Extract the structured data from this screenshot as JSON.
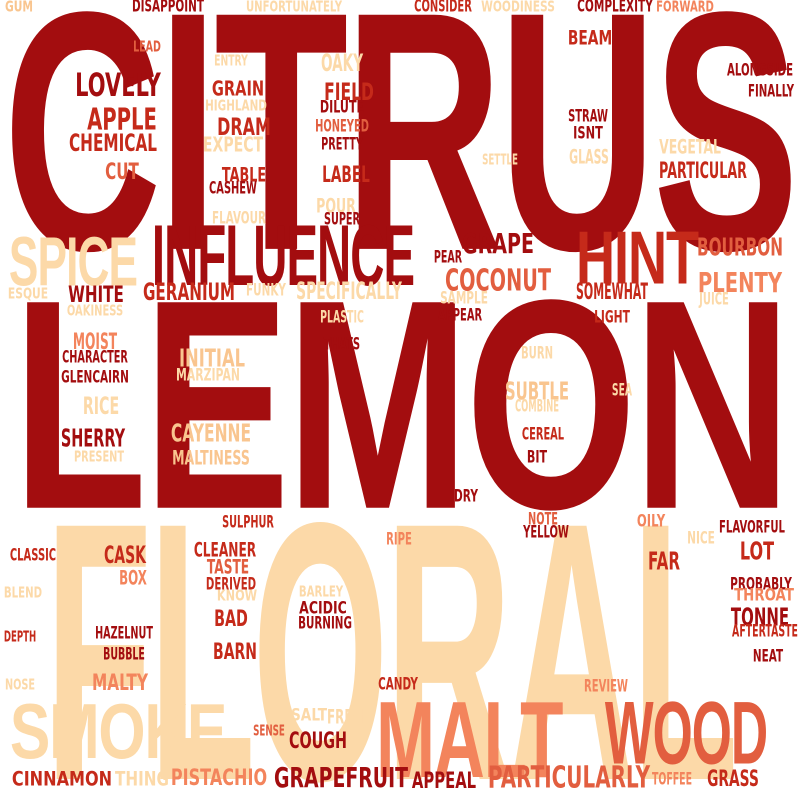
{
  "palette": {
    "dark_red": "#a30d0f",
    "red": "#c52a1a",
    "orange_red": "#e25e3f",
    "salmon": "#f3845c",
    "peach": "#f9c58f",
    "light_peach": "#fcd9a8"
  },
  "words": [
    {
      "text": "CITRUS",
      "color": "#a30d0f"
    },
    {
      "text": "LEMON",
      "color": "#a30d0f"
    },
    {
      "text": "FLORAL",
      "color": "#fcd9a8"
    },
    {
      "text": "MALT",
      "color": "#f3845c"
    },
    {
      "text": "WOOD",
      "color": "#e25e3f"
    },
    {
      "text": "SMOKE",
      "color": "#fcd9a8"
    },
    {
      "text": "INFLUENCE",
      "color": "#a30d0f"
    },
    {
      "text": "HINT",
      "color": "#c52a1a"
    },
    {
      "text": "SPICE",
      "color": "#fcd9a8"
    },
    {
      "text": "GUM",
      "color": "#f9c58f"
    },
    {
      "text": "DISAPPOINT",
      "color": "#a30d0f"
    },
    {
      "text": "UNFORTUNATELY",
      "color": "#fcd9a8"
    },
    {
      "text": "CONSIDER",
      "color": "#c52a1a"
    },
    {
      "text": "WOODINESS",
      "color": "#fcd9a8"
    },
    {
      "text": "COMPLEXITY",
      "color": "#a30d0f"
    },
    {
      "text": "FORWARD",
      "color": "#f3845c"
    },
    {
      "text": "LEAD",
      "color": "#e25e3f"
    },
    {
      "text": "ENTRY",
      "color": "#fcd9a8"
    },
    {
      "text": "OAKY",
      "color": "#fcd9a8"
    },
    {
      "text": "BEAM",
      "color": "#c52a1a"
    },
    {
      "text": "ALONGSIDE",
      "color": "#a30d0f"
    },
    {
      "text": "LOVELY",
      "color": "#a30d0f"
    },
    {
      "text": "GRAIN",
      "color": "#c52a1a"
    },
    {
      "text": "FIELD",
      "color": "#c52a1a"
    },
    {
      "text": "FINALLY",
      "color": "#a30d0f"
    },
    {
      "text": "HIGHLAND",
      "color": "#fcd9a8"
    },
    {
      "text": "DILUTE",
      "color": "#a30d0f"
    },
    {
      "text": "STRAW",
      "color": "#a30d0f"
    },
    {
      "text": "APPLE",
      "color": "#c52a1a"
    },
    {
      "text": "DRAM",
      "color": "#c52a1a"
    },
    {
      "text": "HONEYED",
      "color": "#e25e3f"
    },
    {
      "text": "ISNT",
      "color": "#a30d0f"
    },
    {
      "text": "VEGETAL",
      "color": "#fcd9a8"
    },
    {
      "text": "CHEMICAL",
      "color": "#c52a1a"
    },
    {
      "text": "EXPECT",
      "color": "#fcd9a8"
    },
    {
      "text": "PRETTY",
      "color": "#a30d0f"
    },
    {
      "text": "GLASS",
      "color": "#fcd9a8"
    },
    {
      "text": "SETTLE",
      "color": "#fcd9a8"
    },
    {
      "text": "CUT",
      "color": "#e25e3f"
    },
    {
      "text": "TABLE",
      "color": "#c52a1a"
    },
    {
      "text": "LABEL",
      "color": "#c52a1a"
    },
    {
      "text": "PARTICULAR",
      "color": "#c52a1a"
    },
    {
      "text": "CASHEW",
      "color": "#a30d0f"
    },
    {
      "text": "POUR",
      "color": "#fcd9a8"
    },
    {
      "text": "FLAVOUR",
      "color": "#fcd9a8"
    },
    {
      "text": "SUPER",
      "color": "#a30d0f"
    },
    {
      "text": "GRAPE",
      "color": "#a30d0f"
    },
    {
      "text": "BOURBON",
      "color": "#e25e3f"
    },
    {
      "text": "PEAR",
      "color": "#a30d0f"
    },
    {
      "text": "COCONUT",
      "color": "#e25e3f"
    },
    {
      "text": "PLENTY",
      "color": "#f3845c"
    },
    {
      "text": "ESQUE",
      "color": "#fcd9a8"
    },
    {
      "text": "WHITE",
      "color": "#a30d0f"
    },
    {
      "text": "GERANIUM",
      "color": "#c52a1a"
    },
    {
      "text": "FUNKY",
      "color": "#fcd9a8"
    },
    {
      "text": "SPECIFICALLY",
      "color": "#fcd9a8"
    },
    {
      "text": "SAMPLE",
      "color": "#fcd9a8"
    },
    {
      "text": "SOMEWHAT",
      "color": "#c52a1a"
    },
    {
      "text": "JUICE",
      "color": "#fcd9a8"
    },
    {
      "text": "OAKINESS",
      "color": "#fcd9a8"
    },
    {
      "text": "PLASTIC",
      "color": "#fcd9a8"
    },
    {
      "text": "APPEAR",
      "color": "#a30d0f"
    },
    {
      "text": "LIGHT",
      "color": "#c52a1a"
    },
    {
      "text": "MOIST",
      "color": "#f3845c"
    },
    {
      "text": "THATS",
      "color": "#a30d0f"
    },
    {
      "text": "CHARACTER",
      "color": "#a30d0f"
    },
    {
      "text": "INITIAL",
      "color": "#f9c58f"
    },
    {
      "text": "BURN",
      "color": "#fcd9a8"
    },
    {
      "text": "GLENCAIRN",
      "color": "#a30d0f"
    },
    {
      "text": "MARZIPAN",
      "color": "#fcd9a8"
    },
    {
      "text": "SUBTLE",
      "color": "#f9c58f"
    },
    {
      "text": "SEA",
      "color": "#fcd9a8"
    },
    {
      "text": "RICE",
      "color": "#fcd9a8"
    },
    {
      "text": "COMBINE",
      "color": "#fcd9a8"
    },
    {
      "text": "SHERRY",
      "color": "#a30d0f"
    },
    {
      "text": "CAYENNE",
      "color": "#f9c58f"
    },
    {
      "text": "CEREAL",
      "color": "#c52a1a"
    },
    {
      "text": "PRESENT",
      "color": "#fcd9a8"
    },
    {
      "text": "MALTINESS",
      "color": "#f9c58f"
    },
    {
      "text": "BIT",
      "color": "#a30d0f"
    },
    {
      "text": "DRY",
      "color": "#a30d0f"
    },
    {
      "text": "SULPHUR",
      "color": "#c52a1a"
    },
    {
      "text": "NOTE",
      "color": "#e25e3f"
    },
    {
      "text": "OILY",
      "color": "#f3845c"
    },
    {
      "text": "FLAVORFUL",
      "color": "#a30d0f"
    },
    {
      "text": "YELLOW",
      "color": "#a30d0f"
    },
    {
      "text": "RIPE",
      "color": "#f3845c"
    },
    {
      "text": "NICE",
      "color": "#fcd9a8"
    },
    {
      "text": "CLASSIC",
      "color": "#c52a1a"
    },
    {
      "text": "CASK",
      "color": "#c52a1a"
    },
    {
      "text": "CLEANER",
      "color": "#c52a1a"
    },
    {
      "text": "LOT",
      "color": "#c52a1a"
    },
    {
      "text": "TASTE",
      "color": "#e25e3f"
    },
    {
      "text": "FAR",
      "color": "#c52a1a"
    },
    {
      "text": "BOX",
      "color": "#f3845c"
    },
    {
      "text": "DERIVED",
      "color": "#c52a1a"
    },
    {
      "text": "PROBABLY",
      "color": "#a30d0f"
    },
    {
      "text": "BLEND",
      "color": "#fcd9a8"
    },
    {
      "text": "KNOW",
      "color": "#fcd9a8"
    },
    {
      "text": "BARLEY",
      "color": "#fcd9a8"
    },
    {
      "text": "THROAT",
      "color": "#f3845c"
    },
    {
      "text": "BAD",
      "color": "#c52a1a"
    },
    {
      "text": "ACIDIC",
      "color": "#a30d0f"
    },
    {
      "text": "TONNE",
      "color": "#a30d0f"
    },
    {
      "text": "BURNING",
      "color": "#a30d0f"
    },
    {
      "text": "DEPTH",
      "color": "#c52a1a"
    },
    {
      "text": "HAZELNUT",
      "color": "#a30d0f"
    },
    {
      "text": "AFTERTASTE",
      "color": "#c52a1a"
    },
    {
      "text": "BUBBLE",
      "color": "#a30d0f"
    },
    {
      "text": "BARN",
      "color": "#c52a1a"
    },
    {
      "text": "NEAT",
      "color": "#a30d0f"
    },
    {
      "text": "NOSE",
      "color": "#fcd9a8"
    },
    {
      "text": "MALTY",
      "color": "#f3845c"
    },
    {
      "text": "CANDY",
      "color": "#c52a1a"
    },
    {
      "text": "REVIEW",
      "color": "#f3845c"
    },
    {
      "text": "SALT",
      "color": "#fcd9a8"
    },
    {
      "text": "FRESH",
      "color": "#fcd9a8"
    },
    {
      "text": "SENSE",
      "color": "#e25e3f"
    },
    {
      "text": "COUGH",
      "color": "#a30d0f"
    },
    {
      "text": "CINNAMON",
      "color": "#c52a1a"
    },
    {
      "text": "THING",
      "color": "#fcd9a8"
    },
    {
      "text": "PISTACHIO",
      "color": "#f3845c"
    },
    {
      "text": "GRAPEFRUIT",
      "color": "#a30d0f"
    },
    {
      "text": "APPEAL",
      "color": "#a30d0f"
    },
    {
      "text": "PARTICULARLY",
      "color": "#e25e3f"
    },
    {
      "text": "TOFFEE",
      "color": "#f3845c"
    },
    {
      "text": "GRASS",
      "color": "#c52a1a"
    }
  ]
}
